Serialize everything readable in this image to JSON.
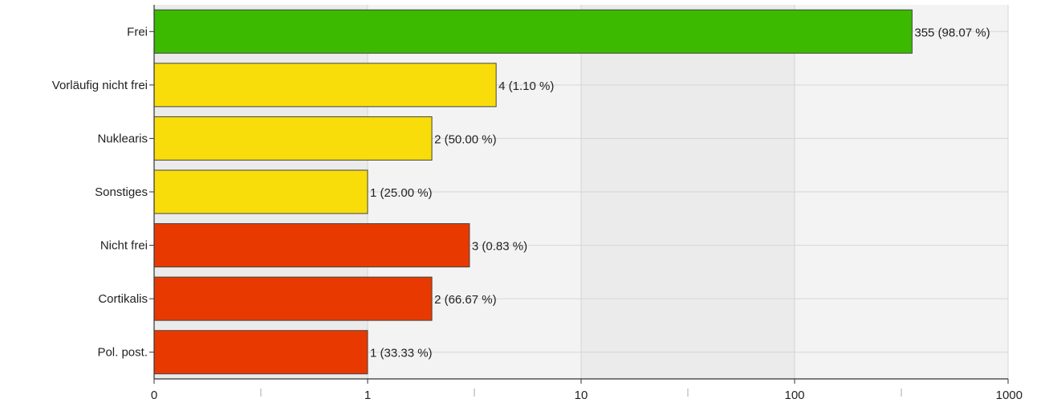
{
  "chart_data": {
    "type": "bar",
    "orientation": "horizontal",
    "scale": "log",
    "xlim": [
      0,
      1000
    ],
    "x_ticks": [
      "0",
      "1",
      "10",
      "100",
      "1000"
    ],
    "grid": true,
    "legend": "none",
    "categories": [
      "Frei",
      "Vorläufig nicht frei",
      "Nuklearis",
      "Sonstiges",
      "Nicht frei",
      "Cortikalis",
      "Pol. post."
    ],
    "values": [
      355,
      4,
      2,
      1,
      3,
      2,
      1
    ],
    "value_labels": [
      "355 (98.07 %)",
      "4 (1.10 %)",
      "2 (50.00 %)",
      "1 (25.00 %)",
      "3 (0.83 %)",
      "2 (66.67 %)",
      "1 (33.33 %)"
    ],
    "bar_colors": [
      "#3cba00",
      "#f8dd0a",
      "#f8dd0a",
      "#f8dd0a",
      "#e83a00",
      "#e83a00",
      "#e83a00"
    ]
  }
}
